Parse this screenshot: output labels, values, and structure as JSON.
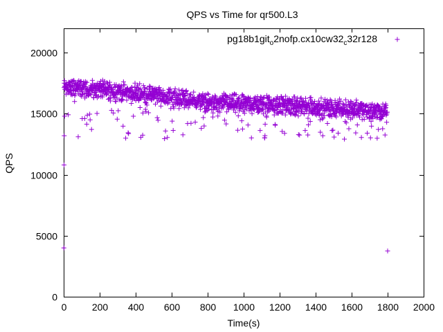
{
  "chart_data": {
    "type": "scatter",
    "title": "QPS vs Time for qr500.L3",
    "xlabel": "Time(s)",
    "ylabel": "QPS",
    "xlim": [
      0,
      2000
    ],
    "ylim": [
      0,
      22000
    ],
    "xticks": [
      "0",
      "200",
      "400",
      "600",
      "800",
      "1000",
      "1200",
      "1400",
      "1600",
      "1800",
      "2000"
    ],
    "yticks": [
      "0",
      "5000",
      "10000",
      "15000",
      "20000"
    ],
    "grid": false,
    "legend_position": "top-right",
    "marker": "+",
    "series": [
      {
        "name": "pg18b1git_o2nofp.cx10cw32_c32r128",
        "legend_parts": [
          {
            "text": "pg18b1git",
            "sub": false
          },
          {
            "text": "o",
            "sub": true
          },
          {
            "text": "2nofp.cx10cw32",
            "sub": false
          },
          {
            "text": "c",
            "sub": true
          },
          {
            "text": "32r128",
            "sub": false
          }
        ],
        "color": "#9400d3",
        "outliers": [
          {
            "x": 1,
            "y": 4000
          },
          {
            "x": 2,
            "y": 10800
          },
          {
            "x": 3,
            "y": 13200
          },
          {
            "x": 5,
            "y": 14800
          },
          {
            "x": 1800,
            "y": 3750
          }
        ],
        "trend": [
          {
            "x": 0,
            "y": 17200
          },
          {
            "x": 200,
            "y": 17000
          },
          {
            "x": 400,
            "y": 16700
          },
          {
            "x": 600,
            "y": 16400
          },
          {
            "x": 800,
            "y": 15900
          },
          {
            "x": 1000,
            "y": 15800
          },
          {
            "x": 1200,
            "y": 15700
          },
          {
            "x": 1400,
            "y": 15500
          },
          {
            "x": 1600,
            "y": 15400
          },
          {
            "x": 1800,
            "y": 15100
          }
        ],
        "spread": 800,
        "lower_outlier_min": 12900,
        "x_end": 1798,
        "point_count": 1600
      }
    ]
  }
}
